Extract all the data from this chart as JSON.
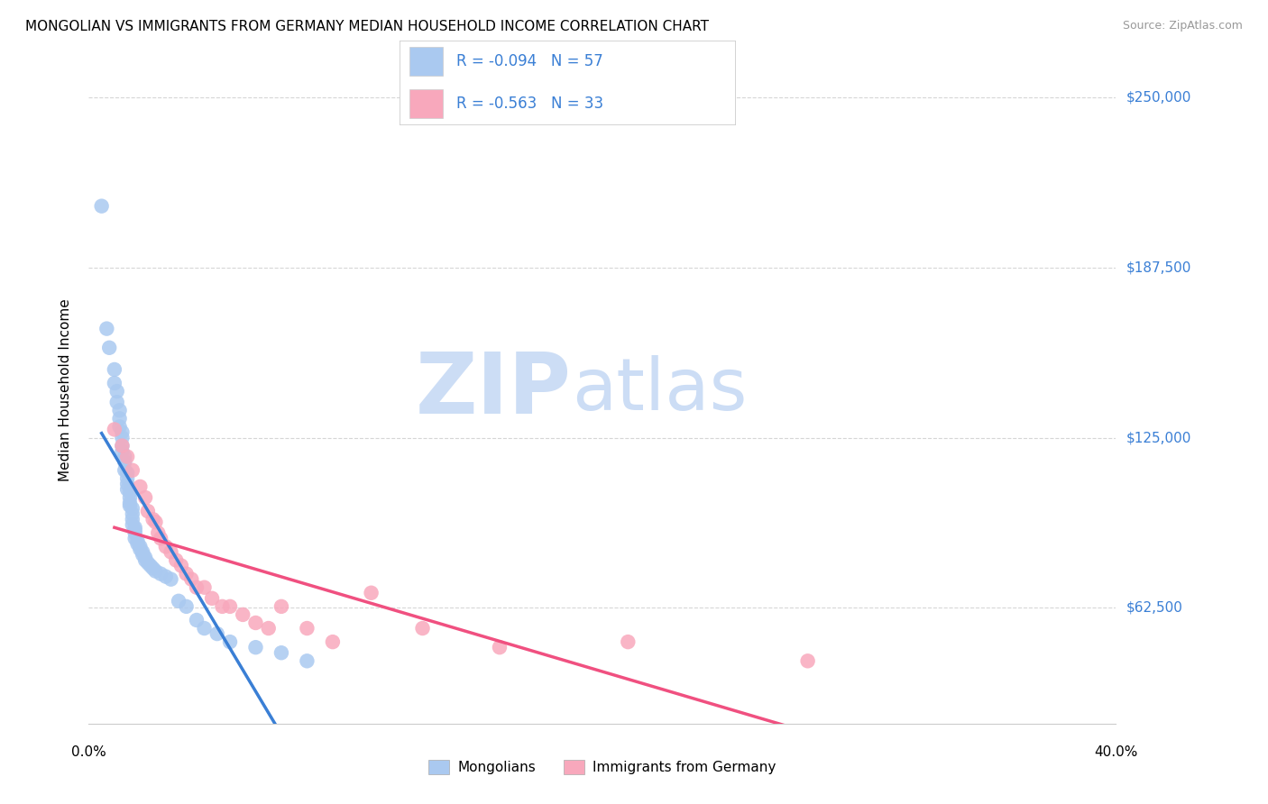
{
  "title": "MONGOLIAN VS IMMIGRANTS FROM GERMANY MEDIAN HOUSEHOLD INCOME CORRELATION CHART",
  "source": "Source: ZipAtlas.com",
  "ylabel": "Median Household Income",
  "xlim": [
    0.0,
    0.4
  ],
  "ylim": [
    20000,
    265000
  ],
  "yticks": [
    62500,
    125000,
    187500,
    250000
  ],
  "ytick_labels": [
    "$62,500",
    "$125,000",
    "$187,500",
    "$250,000"
  ],
  "xtick_labels": [
    "0.0%",
    "",
    "",
    "",
    "40.0%"
  ],
  "legend1_label": "R = -0.094   N = 57",
  "legend2_label": "R = -0.563   N = 33",
  "bottom_legend1": "Mongolians",
  "bottom_legend2": "Immigrants from Germany",
  "blue_color": "#aac9f0",
  "pink_color": "#f8a8bc",
  "blue_line_color": "#3a7fd5",
  "pink_line_color": "#f05080",
  "dashed_line_color": "#a8c4e8",
  "watermark_zip": "ZIP",
  "watermark_atlas": "atlas",
  "watermark_color": "#ccddf5",
  "background_color": "#ffffff",
  "blue_R": -0.094,
  "pink_R": -0.563,
  "blue_scatter_x": [
    0.005,
    0.007,
    0.008,
    0.01,
    0.01,
    0.011,
    0.011,
    0.012,
    0.012,
    0.012,
    0.013,
    0.013,
    0.013,
    0.013,
    0.014,
    0.014,
    0.014,
    0.015,
    0.015,
    0.015,
    0.015,
    0.016,
    0.016,
    0.016,
    0.016,
    0.017,
    0.017,
    0.017,
    0.017,
    0.018,
    0.018,
    0.018,
    0.018,
    0.019,
    0.019,
    0.02,
    0.02,
    0.021,
    0.021,
    0.022,
    0.022,
    0.023,
    0.024,
    0.025,
    0.026,
    0.028,
    0.03,
    0.032,
    0.035,
    0.038,
    0.042,
    0.045,
    0.05,
    0.055,
    0.065,
    0.075,
    0.085
  ],
  "blue_scatter_y": [
    210000,
    165000,
    158000,
    150000,
    145000,
    142000,
    138000,
    135000,
    132000,
    129000,
    127000,
    125000,
    122000,
    120000,
    118000,
    116000,
    113000,
    112000,
    110000,
    108000,
    106000,
    105000,
    103000,
    101000,
    100000,
    99000,
    97000,
    95000,
    93000,
    92000,
    91000,
    90000,
    88000,
    87000,
    86000,
    85000,
    84000,
    83000,
    82000,
    81000,
    80000,
    79000,
    78000,
    77000,
    76000,
    75000,
    74000,
    73000,
    65000,
    63000,
    58000,
    55000,
    53000,
    50000,
    48000,
    46000,
    43000
  ],
  "pink_scatter_x": [
    0.01,
    0.013,
    0.015,
    0.017,
    0.02,
    0.022,
    0.023,
    0.025,
    0.026,
    0.027,
    0.028,
    0.03,
    0.032,
    0.034,
    0.036,
    0.038,
    0.04,
    0.042,
    0.045,
    0.048,
    0.052,
    0.055,
    0.06,
    0.065,
    0.07,
    0.075,
    0.085,
    0.095,
    0.11,
    0.13,
    0.16,
    0.21,
    0.28
  ],
  "pink_scatter_y": [
    128000,
    122000,
    118000,
    113000,
    107000,
    103000,
    98000,
    95000,
    94000,
    90000,
    88000,
    85000,
    83000,
    80000,
    78000,
    75000,
    73000,
    70000,
    70000,
    66000,
    63000,
    63000,
    60000,
    57000,
    55000,
    63000,
    55000,
    50000,
    68000,
    55000,
    48000,
    50000,
    43000
  ],
  "blue_trend_x": [
    0.005,
    0.085
  ],
  "blue_trend_y_intercept": 95000,
  "blue_trend_slope": -50000,
  "pink_trend_x": [
    0.005,
    0.34
  ],
  "pink_trend_y_intercept": 120000,
  "pink_trend_slope": -230000,
  "dash_trend_x": [
    0.01,
    0.4
  ],
  "dash_trend_y_intercept": 115000,
  "dash_trend_slope": -220000
}
